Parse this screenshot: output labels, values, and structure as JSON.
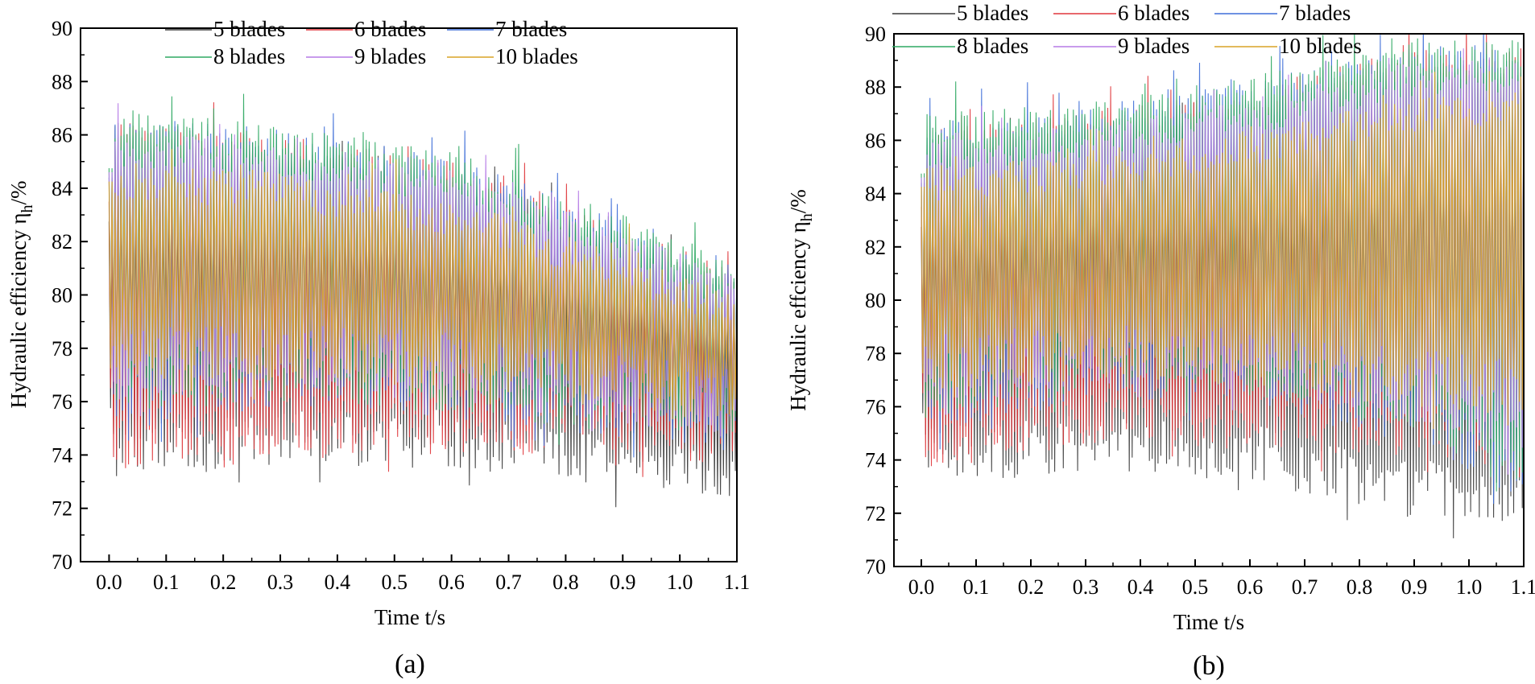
{
  "colors": {
    "5 blades": "#3a3a3a",
    "6 blades": "#e0373c",
    "7 blades": "#3f6fd8",
    "8 blades": "#2ea862",
    "9 blades": "#b57ae6",
    "10 blades": "#d9a427"
  },
  "chart_data": [
    {
      "type": "line",
      "caption": "(a)",
      "xlabel": "Time t/s",
      "ylabel": "Hydraulic efficiency η",
      "ylabel_sub": "h",
      "ylabel_unit": "/%",
      "xlim": [
        -0.05,
        1.1
      ],
      "ylim": [
        70,
        90
      ],
      "xticks": [
        "0.0",
        "0.1",
        "0.2",
        "0.3",
        "0.4",
        "0.5",
        "0.6",
        "0.7",
        "0.8",
        "0.9",
        "1.0",
        "1.1"
      ],
      "xtick_values": [
        0.0,
        0.1,
        0.2,
        0.3,
        0.4,
        0.5,
        0.6,
        0.7,
        0.8,
        0.9,
        1.0,
        1.1
      ],
      "yticks": [
        "70",
        "72",
        "74",
        "76",
        "78",
        "80",
        "82",
        "84",
        "86",
        "88",
        "90"
      ],
      "ytick_values": [
        70,
        72,
        74,
        76,
        78,
        80,
        82,
        84,
        86,
        88,
        90
      ],
      "legend": [
        "5 blades",
        "6 blades",
        "7   blades",
        "8 blades",
        "9 blades",
        "10 blades"
      ],
      "series": [
        {
          "name": "5 blades",
          "upper": [
            [
              0.0,
              85.5
            ],
            [
              0.3,
              85.2
            ],
            [
              0.6,
              84.5
            ],
            [
              0.9,
              82.0
            ],
            [
              1.1,
              80.5
            ]
          ],
          "lower": [
            [
              0.0,
              73.0
            ],
            [
              0.3,
              73.6
            ],
            [
              0.6,
              73.5
            ],
            [
              0.9,
              72.8
            ],
            [
              1.1,
              72.0
            ]
          ]
        },
        {
          "name": "6 blades",
          "upper": [
            [
              0.0,
              86.5
            ],
            [
              0.3,
              86.0
            ],
            [
              0.6,
              85.0
            ],
            [
              0.9,
              82.5
            ],
            [
              1.1,
              81.0
            ]
          ],
          "lower": [
            [
              0.0,
              73.5
            ],
            [
              0.3,
              74.0
            ],
            [
              0.6,
              74.0
            ],
            [
              0.9,
              73.8
            ],
            [
              1.1,
              73.5
            ]
          ]
        },
        {
          "name": "7 blades",
          "upper": [
            [
              0.0,
              86.8
            ],
            [
              0.3,
              86.2
            ],
            [
              0.6,
              85.2
            ],
            [
              0.9,
              82.8
            ],
            [
              1.1,
              81.2
            ]
          ],
          "lower": [
            [
              0.0,
              75.0
            ],
            [
              0.3,
              75.8
            ],
            [
              0.6,
              75.3
            ],
            [
              0.9,
              74.6
            ],
            [
              1.1,
              74.0
            ]
          ]
        },
        {
          "name": "8 blades",
          "upper": [
            [
              0.0,
              87.0
            ],
            [
              0.3,
              86.4
            ],
            [
              0.6,
              85.4
            ],
            [
              0.9,
              83.0
            ],
            [
              1.1,
              81.4
            ]
          ],
          "lower": [
            [
              0.0,
              75.5
            ],
            [
              0.3,
              76.0
            ],
            [
              0.6,
              75.5
            ],
            [
              0.9,
              74.8
            ],
            [
              1.1,
              74.2
            ]
          ]
        },
        {
          "name": "9 blades",
          "upper": [
            [
              0.0,
              86.2
            ],
            [
              0.3,
              85.8
            ],
            [
              0.6,
              84.8
            ],
            [
              0.9,
              82.4
            ],
            [
              1.1,
              80.8
            ]
          ],
          "lower": [
            [
              0.0,
              76.0
            ],
            [
              0.3,
              76.4
            ],
            [
              0.6,
              76.0
            ],
            [
              0.9,
              75.2
            ],
            [
              1.1,
              74.5
            ]
          ]
        },
        {
          "name": "10 blades",
          "upper": [
            [
              0.0,
              85.0
            ],
            [
              0.3,
              84.6
            ],
            [
              0.6,
              83.6
            ],
            [
              0.9,
              81.6
            ],
            [
              1.1,
              80.0
            ]
          ],
          "lower": [
            [
              0.0,
              76.5
            ],
            [
              0.3,
              76.8
            ],
            [
              0.6,
              76.4
            ],
            [
              0.9,
              75.6
            ],
            [
              1.1,
              75.0
            ]
          ]
        }
      ]
    },
    {
      "type": "line",
      "caption": "(b)",
      "xlabel": "Time t/s",
      "ylabel": "Hydraulic effciency η",
      "ylabel_sub": "h",
      "ylabel_unit": "/%",
      "xlim": [
        -0.05,
        1.1
      ],
      "ylim": [
        70,
        90
      ],
      "xticks": [
        "0.0",
        "0.1",
        "0.2",
        "0.3",
        "0.4",
        "0.5",
        "0.6",
        "0.7",
        "0.8",
        "0.9",
        "1.0",
        "1.1"
      ],
      "xtick_values": [
        0.0,
        0.1,
        0.2,
        0.3,
        0.4,
        0.5,
        0.6,
        0.7,
        0.8,
        0.9,
        1.0,
        1.1
      ],
      "yticks": [
        "70",
        "72",
        "74",
        "76",
        "78",
        "80",
        "82",
        "84",
        "86",
        "88",
        "90"
      ],
      "ytick_values": [
        70,
        72,
        74,
        76,
        78,
        80,
        82,
        84,
        86,
        88,
        90
      ],
      "legend": [
        "5  blades",
        "6 blades",
        "7 blades",
        "8  blades",
        "9 blades",
        "10 blades"
      ],
      "series": [
        {
          "name": "5 blades",
          "upper": [
            [
              0.0,
              85.5
            ],
            [
              0.3,
              86.0
            ],
            [
              0.6,
              87.0
            ],
            [
              0.9,
              88.5
            ],
            [
              1.1,
              88.8
            ]
          ],
          "lower": [
            [
              0.0,
              73.0
            ],
            [
              0.3,
              73.5
            ],
            [
              0.6,
              73.2
            ],
            [
              0.9,
              71.8
            ],
            [
              1.1,
              71.5
            ]
          ]
        },
        {
          "name": "6 blades",
          "upper": [
            [
              0.0,
              86.5
            ],
            [
              0.3,
              87.0
            ],
            [
              0.6,
              88.0
            ],
            [
              0.9,
              89.5
            ],
            [
              1.1,
              89.5
            ]
          ],
          "lower": [
            [
              0.0,
              73.5
            ],
            [
              0.3,
              74.5
            ],
            [
              0.6,
              74.5
            ],
            [
              0.9,
              74.0
            ],
            [
              1.1,
              73.5
            ]
          ]
        },
        {
          "name": "7 blades",
          "upper": [
            [
              0.0,
              86.8
            ],
            [
              0.3,
              87.2
            ],
            [
              0.6,
              88.2
            ],
            [
              0.9,
              89.6
            ],
            [
              1.1,
              89.6
            ]
          ],
          "lower": [
            [
              0.0,
              75.0
            ],
            [
              0.3,
              76.2
            ],
            [
              0.6,
              76.2
            ],
            [
              0.9,
              74.5
            ],
            [
              1.1,
              72.5
            ]
          ]
        },
        {
          "name": "8 blades",
          "upper": [
            [
              0.0,
              87.0
            ],
            [
              0.3,
              87.4
            ],
            [
              0.6,
              88.4
            ],
            [
              0.9,
              89.8
            ],
            [
              1.1,
              89.8
            ]
          ],
          "lower": [
            [
              0.0,
              75.5
            ],
            [
              0.3,
              76.5
            ],
            [
              0.6,
              76.4
            ],
            [
              0.9,
              75.0
            ],
            [
              1.1,
              73.0
            ]
          ]
        },
        {
          "name": "9 blades",
          "upper": [
            [
              0.0,
              86.2
            ],
            [
              0.3,
              86.6
            ],
            [
              0.6,
              87.6
            ],
            [
              0.9,
              89.0
            ],
            [
              1.1,
              89.2
            ]
          ],
          "lower": [
            [
              0.0,
              76.0
            ],
            [
              0.3,
              76.8
            ],
            [
              0.6,
              76.6
            ],
            [
              0.9,
              75.4
            ],
            [
              1.1,
              74.0
            ]
          ]
        },
        {
          "name": "10 blades",
          "upper": [
            [
              0.0,
              85.0
            ],
            [
              0.3,
              85.6
            ],
            [
              0.6,
              86.4
            ],
            [
              0.9,
              87.6
            ],
            [
              1.1,
              87.8
            ]
          ],
          "lower": [
            [
              0.0,
              76.5
            ],
            [
              0.3,
              77.0
            ],
            [
              0.6,
              76.8
            ],
            [
              0.9,
              76.0
            ],
            [
              1.1,
              75.5
            ]
          ]
        }
      ]
    }
  ]
}
